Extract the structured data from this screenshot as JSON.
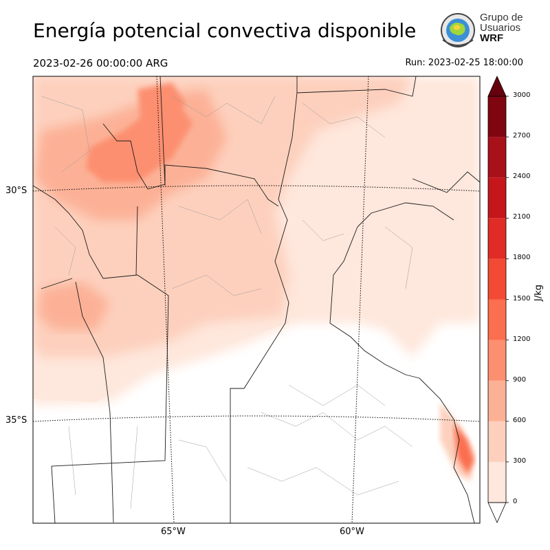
{
  "header": {
    "title": "Energía potencial convectiva disponible",
    "valid_time": "2023-02-26 00:00:00 ARG",
    "run_time": "Run: 2023-02-25 18:00:00"
  },
  "logo": {
    "line1": "Grupo de",
    "line2": "Usuarios",
    "line3": "WRF"
  },
  "map": {
    "lat_labels": [
      "30°S",
      "35°S"
    ],
    "lon_labels": [
      "65°W",
      "60°W"
    ]
  },
  "colorbar": {
    "unit": "J/kg",
    "ticks": [
      "0",
      "300",
      "600",
      "900",
      "1200",
      "1500",
      "1800",
      "2100",
      "2400",
      "2700",
      "3000"
    ],
    "colors": [
      "#fee7dc",
      "#fdd0bd",
      "#fcb196",
      "#fc8f6f",
      "#fb6e4f",
      "#f34a36",
      "#e02b26",
      "#c5161b",
      "#a8101a",
      "#7f0610"
    ]
  }
}
